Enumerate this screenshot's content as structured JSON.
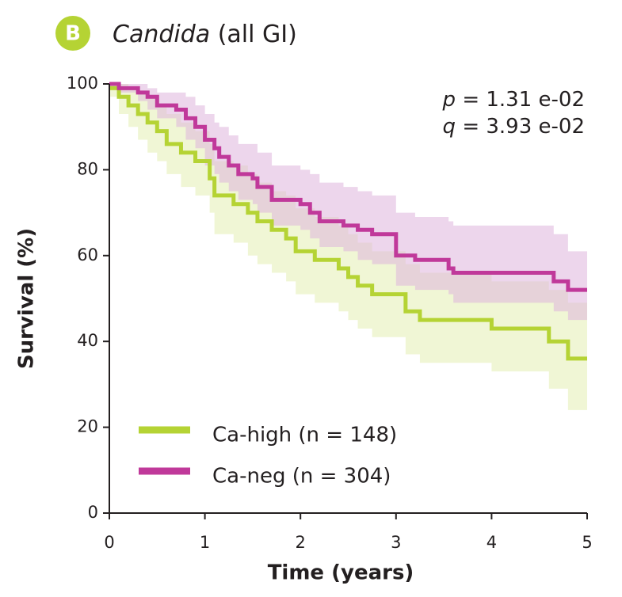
{
  "panel_label": "B",
  "chart_data": {
    "type": "km",
    "title": "Candida",
    "title_suffix": "(all GI)",
    "annotations": [
      {
        "symbol": "p",
        "text": "= 1.31 e-02"
      },
      {
        "symbol": "q",
        "text": "= 3.93 e-02"
      }
    ],
    "xlabel": "Time (years)",
    "ylabel": "Survival (%)",
    "xlim": [
      0,
      5
    ],
    "xticks": [
      0,
      1,
      2,
      3,
      4,
      5
    ],
    "ylim": [
      0,
      100
    ],
    "yticks": [
      0,
      20,
      40,
      60,
      80,
      100
    ],
    "series": [
      {
        "name": "Ca-high (n = 148)",
        "color": "#b5d334",
        "band_color": "#e3eeb2",
        "x": [
          0,
          0.1,
          0.2,
          0.3,
          0.4,
          0.5,
          0.6,
          0.75,
          0.9,
          1.05,
          1.1,
          1.3,
          1.45,
          1.55,
          1.7,
          1.85,
          1.95,
          2.15,
          2.4,
          2.5,
          2.6,
          2.75,
          3.1,
          3.25,
          4.0,
          4.6,
          4.8,
          5
        ],
        "values": [
          99,
          97,
          95,
          93,
          91,
          89,
          86,
          84,
          82,
          78,
          74,
          72,
          70,
          68,
          66,
          64,
          61,
          59,
          57,
          55,
          53,
          51,
          47,
          45,
          43,
          40,
          36,
          36
        ],
        "upper": [
          100,
          100,
          99,
          98,
          97,
          95,
          93,
          91,
          89,
          86,
          82,
          81,
          79,
          77,
          75,
          74,
          71,
          69,
          67,
          65,
          63,
          61,
          58,
          56,
          54,
          52,
          49,
          49
        ],
        "lower": [
          97,
          93,
          90,
          87,
          84,
          82,
          79,
          76,
          74,
          70,
          65,
          63,
          60,
          58,
          56,
          54,
          51,
          49,
          47,
          45,
          43,
          41,
          37,
          35,
          33,
          29,
          24,
          24
        ]
      },
      {
        "name": "Ca-neg (n = 304)",
        "color": "#c0399a",
        "band_color": "#dfb4dc",
        "x": [
          0,
          0.1,
          0.3,
          0.4,
          0.5,
          0.7,
          0.8,
          0.9,
          1.0,
          1.1,
          1.15,
          1.25,
          1.35,
          1.5,
          1.55,
          1.7,
          2.0,
          2.1,
          2.2,
          2.45,
          2.6,
          2.75,
          3.0,
          3.2,
          3.55,
          3.6,
          4.65,
          4.8,
          5
        ],
        "values": [
          100,
          99,
          98,
          97,
          95,
          94,
          92,
          90,
          87,
          85,
          83,
          81,
          79,
          78,
          76,
          73,
          72,
          70,
          68,
          67,
          66,
          65,
          60,
          59,
          57,
          56,
          54,
          52,
          52
        ],
        "upper": [
          100,
          100,
          100,
          99,
          98,
          98,
          97,
          95,
          93,
          91,
          90,
          88,
          86,
          86,
          84,
          81,
          80,
          79,
          77,
          76,
          75,
          74,
          70,
          69,
          68,
          67,
          65,
          61,
          61
        ],
        "lower": [
          100,
          98,
          96,
          94,
          92,
          90,
          87,
          85,
          81,
          79,
          77,
          75,
          73,
          72,
          70,
          67,
          66,
          64,
          62,
          61,
          59,
          58,
          53,
          52,
          51,
          49,
          47,
          45,
          45
        ]
      }
    ]
  }
}
